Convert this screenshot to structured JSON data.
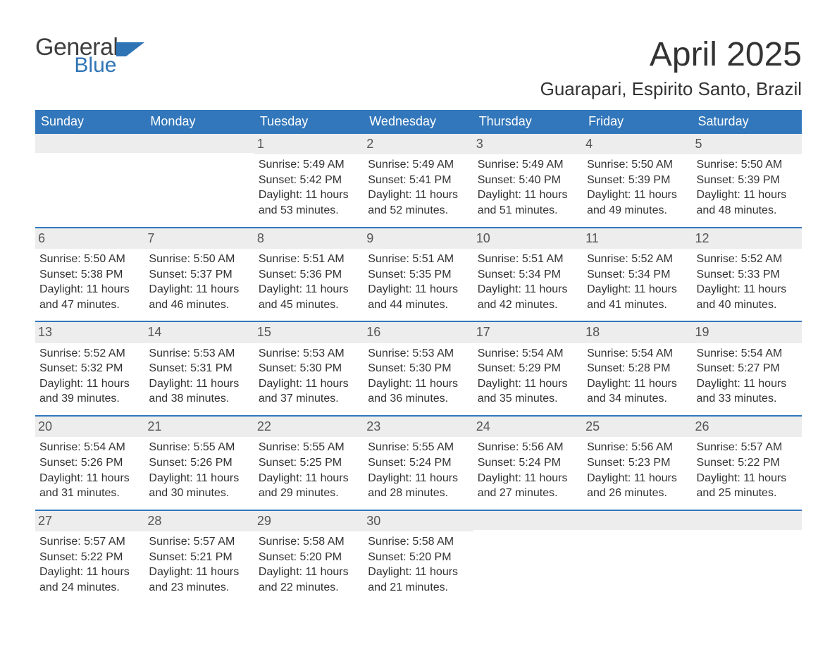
{
  "brand": {
    "word1": "General",
    "word2": "Blue",
    "flag_color": "#2f74b5"
  },
  "title": "April 2025",
  "location": "Guarapari, Espirito Santo, Brazil",
  "colors": {
    "header_bg": "#3277bb",
    "header_text": "#ffffff",
    "daynum_bg": "#ededed",
    "text": "#333333",
    "rule": "#3277bb"
  },
  "dow": [
    "Sunday",
    "Monday",
    "Tuesday",
    "Wednesday",
    "Thursday",
    "Friday",
    "Saturday"
  ],
  "weeks": [
    [
      null,
      null,
      {
        "n": "1",
        "sr": "Sunrise: 5:49 AM",
        "ss": "Sunset: 5:42 PM",
        "d1": "Daylight: 11 hours",
        "d2": "and 53 minutes."
      },
      {
        "n": "2",
        "sr": "Sunrise: 5:49 AM",
        "ss": "Sunset: 5:41 PM",
        "d1": "Daylight: 11 hours",
        "d2": "and 52 minutes."
      },
      {
        "n": "3",
        "sr": "Sunrise: 5:49 AM",
        "ss": "Sunset: 5:40 PM",
        "d1": "Daylight: 11 hours",
        "d2": "and 51 minutes."
      },
      {
        "n": "4",
        "sr": "Sunrise: 5:50 AM",
        "ss": "Sunset: 5:39 PM",
        "d1": "Daylight: 11 hours",
        "d2": "and 49 minutes."
      },
      {
        "n": "5",
        "sr": "Sunrise: 5:50 AM",
        "ss": "Sunset: 5:39 PM",
        "d1": "Daylight: 11 hours",
        "d2": "and 48 minutes."
      }
    ],
    [
      {
        "n": "6",
        "sr": "Sunrise: 5:50 AM",
        "ss": "Sunset: 5:38 PM",
        "d1": "Daylight: 11 hours",
        "d2": "and 47 minutes."
      },
      {
        "n": "7",
        "sr": "Sunrise: 5:50 AM",
        "ss": "Sunset: 5:37 PM",
        "d1": "Daylight: 11 hours",
        "d2": "and 46 minutes."
      },
      {
        "n": "8",
        "sr": "Sunrise: 5:51 AM",
        "ss": "Sunset: 5:36 PM",
        "d1": "Daylight: 11 hours",
        "d2": "and 45 minutes."
      },
      {
        "n": "9",
        "sr": "Sunrise: 5:51 AM",
        "ss": "Sunset: 5:35 PM",
        "d1": "Daylight: 11 hours",
        "d2": "and 44 minutes."
      },
      {
        "n": "10",
        "sr": "Sunrise: 5:51 AM",
        "ss": "Sunset: 5:34 PM",
        "d1": "Daylight: 11 hours",
        "d2": "and 42 minutes."
      },
      {
        "n": "11",
        "sr": "Sunrise: 5:52 AM",
        "ss": "Sunset: 5:34 PM",
        "d1": "Daylight: 11 hours",
        "d2": "and 41 minutes."
      },
      {
        "n": "12",
        "sr": "Sunrise: 5:52 AM",
        "ss": "Sunset: 5:33 PM",
        "d1": "Daylight: 11 hours",
        "d2": "and 40 minutes."
      }
    ],
    [
      {
        "n": "13",
        "sr": "Sunrise: 5:52 AM",
        "ss": "Sunset: 5:32 PM",
        "d1": "Daylight: 11 hours",
        "d2": "and 39 minutes."
      },
      {
        "n": "14",
        "sr": "Sunrise: 5:53 AM",
        "ss": "Sunset: 5:31 PM",
        "d1": "Daylight: 11 hours",
        "d2": "and 38 minutes."
      },
      {
        "n": "15",
        "sr": "Sunrise: 5:53 AM",
        "ss": "Sunset: 5:30 PM",
        "d1": "Daylight: 11 hours",
        "d2": "and 37 minutes."
      },
      {
        "n": "16",
        "sr": "Sunrise: 5:53 AM",
        "ss": "Sunset: 5:30 PM",
        "d1": "Daylight: 11 hours",
        "d2": "and 36 minutes."
      },
      {
        "n": "17",
        "sr": "Sunrise: 5:54 AM",
        "ss": "Sunset: 5:29 PM",
        "d1": "Daylight: 11 hours",
        "d2": "and 35 minutes."
      },
      {
        "n": "18",
        "sr": "Sunrise: 5:54 AM",
        "ss": "Sunset: 5:28 PM",
        "d1": "Daylight: 11 hours",
        "d2": "and 34 minutes."
      },
      {
        "n": "19",
        "sr": "Sunrise: 5:54 AM",
        "ss": "Sunset: 5:27 PM",
        "d1": "Daylight: 11 hours",
        "d2": "and 33 minutes."
      }
    ],
    [
      {
        "n": "20",
        "sr": "Sunrise: 5:54 AM",
        "ss": "Sunset: 5:26 PM",
        "d1": "Daylight: 11 hours",
        "d2": "and 31 minutes."
      },
      {
        "n": "21",
        "sr": "Sunrise: 5:55 AM",
        "ss": "Sunset: 5:26 PM",
        "d1": "Daylight: 11 hours",
        "d2": "and 30 minutes."
      },
      {
        "n": "22",
        "sr": "Sunrise: 5:55 AM",
        "ss": "Sunset: 5:25 PM",
        "d1": "Daylight: 11 hours",
        "d2": "and 29 minutes."
      },
      {
        "n": "23",
        "sr": "Sunrise: 5:55 AM",
        "ss": "Sunset: 5:24 PM",
        "d1": "Daylight: 11 hours",
        "d2": "and 28 minutes."
      },
      {
        "n": "24",
        "sr": "Sunrise: 5:56 AM",
        "ss": "Sunset: 5:24 PM",
        "d1": "Daylight: 11 hours",
        "d2": "and 27 minutes."
      },
      {
        "n": "25",
        "sr": "Sunrise: 5:56 AM",
        "ss": "Sunset: 5:23 PM",
        "d1": "Daylight: 11 hours",
        "d2": "and 26 minutes."
      },
      {
        "n": "26",
        "sr": "Sunrise: 5:57 AM",
        "ss": "Sunset: 5:22 PM",
        "d1": "Daylight: 11 hours",
        "d2": "and 25 minutes."
      }
    ],
    [
      {
        "n": "27",
        "sr": "Sunrise: 5:57 AM",
        "ss": "Sunset: 5:22 PM",
        "d1": "Daylight: 11 hours",
        "d2": "and 24 minutes."
      },
      {
        "n": "28",
        "sr": "Sunrise: 5:57 AM",
        "ss": "Sunset: 5:21 PM",
        "d1": "Daylight: 11 hours",
        "d2": "and 23 minutes."
      },
      {
        "n": "29",
        "sr": "Sunrise: 5:58 AM",
        "ss": "Sunset: 5:20 PM",
        "d1": "Daylight: 11 hours",
        "d2": "and 22 minutes."
      },
      {
        "n": "30",
        "sr": "Sunrise: 5:58 AM",
        "ss": "Sunset: 5:20 PM",
        "d1": "Daylight: 11 hours",
        "d2": "and 21 minutes."
      },
      null,
      null,
      null
    ]
  ]
}
